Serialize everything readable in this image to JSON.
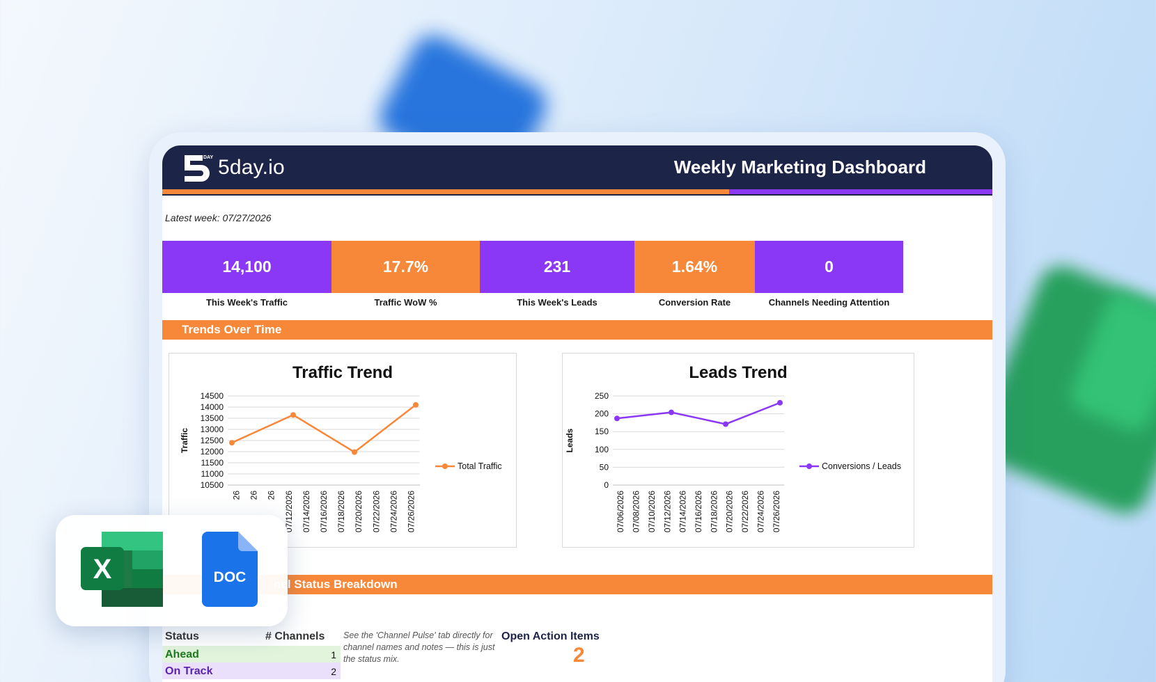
{
  "brand": {
    "name": "5day.io",
    "mark_small": "DAY"
  },
  "header": {
    "title": "Weekly Marketing Dashboard"
  },
  "latest_week": "Latest week: 07/27/2026",
  "kpis": [
    {
      "value": "14,100",
      "label": "This Week's Traffic",
      "color": "#8a38f5"
    },
    {
      "value": "17.7%",
      "label": "Traffic WoW %",
      "color": "#f7883a"
    },
    {
      "value": "231",
      "label": "This Week's Leads",
      "color": "#8a38f5"
    },
    {
      "value": "1.64%",
      "label": "Conversion Rate",
      "color": "#f7883a"
    },
    {
      "value": "0",
      "label": "Channels Needing Attention",
      "color": "#8a38f5"
    }
  ],
  "sections": {
    "trends": "Trends Over Time",
    "status": "nel Status Breakdown"
  },
  "chart_data": [
    {
      "type": "line",
      "title": "Traffic Trend",
      "ylabel": "Traffic",
      "ylim": [
        10500,
        14500
      ],
      "yticks": [
        "14500",
        "14000",
        "13500",
        "13000",
        "12500",
        "12000",
        "11500",
        "11000",
        "10500"
      ],
      "xtick_labels": [
        "26",
        "26",
        "26",
        "07/12/2026",
        "07/14/2026",
        "07/16/2026",
        "07/18/2026",
        "07/20/2026",
        "07/22/2026",
        "07/24/2026",
        "07/26/2026"
      ],
      "series": [
        {
          "name": "Total Traffic",
          "color": "#f7883a",
          "x": [
            "07/06/2026",
            "07/13/2026",
            "07/20/2026",
            "07/27/2026"
          ],
          "values": [
            12400,
            13650,
            11980,
            14100
          ]
        }
      ],
      "legend_position": "right"
    },
    {
      "type": "line",
      "title": "Leads Trend",
      "ylabel": "Leads",
      "ylim": [
        0,
        250
      ],
      "yticks": [
        "250",
        "200",
        "150",
        "100",
        "50",
        "0"
      ],
      "xtick_labels": [
        "07/06/2026",
        "07/08/2026",
        "07/10/2026",
        "07/12/2026",
        "07/14/2026",
        "07/16/2026",
        "07/18/2026",
        "07/20/2026",
        "07/22/2026",
        "07/24/2026",
        "07/26/2026"
      ],
      "series": [
        {
          "name": "Conversions / Leads",
          "color": "#8a38f5",
          "x": [
            "07/06/2026",
            "07/13/2026",
            "07/20/2026",
            "07/27/2026"
          ],
          "values": [
            187,
            204,
            171,
            231
          ]
        }
      ],
      "legend_position": "right"
    }
  ],
  "status_table": {
    "headers": [
      "Status",
      "# Channels"
    ],
    "rows": [
      {
        "name": "Ahead",
        "count": "1",
        "bg": "#e2f4dc",
        "fg": "#1f7a1f"
      },
      {
        "name": "On Track",
        "count": "2",
        "bg": "#ebe0fb",
        "fg": "#5a23b0"
      }
    ]
  },
  "note": "See the 'Channel Pulse' tab directly for channel names and notes — this is just the status mix.",
  "open_action_items": {
    "label": "Open Action Items",
    "value": "2"
  },
  "app_badges": {
    "doc_label": "DOC",
    "xl_letter": "X"
  }
}
